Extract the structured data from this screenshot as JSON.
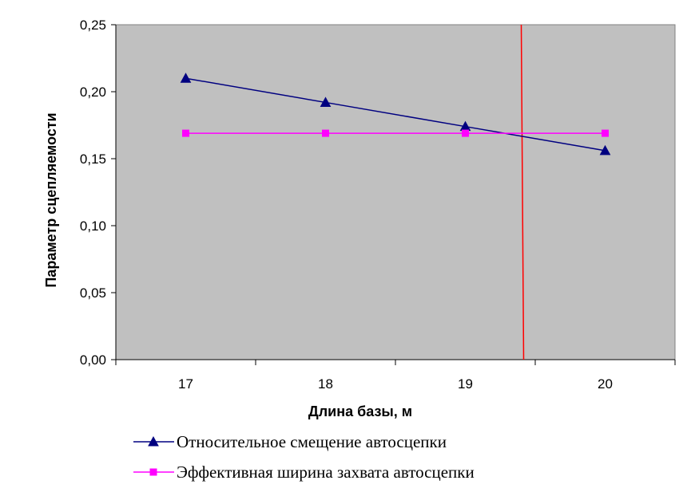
{
  "chart_data": {
    "type": "line",
    "x": [
      "17",
      "18",
      "19",
      "20"
    ],
    "xlabel": "Длина базы, м",
    "ylabel": "Параметр сцепляемости",
    "ylim": [
      0,
      0.25
    ],
    "yticks": [
      "0,00",
      "0,05",
      "0,10",
      "0,15",
      "0,20",
      "0,25"
    ],
    "grid": false,
    "plot_background": "#c0c0c0",
    "legend_position": "bottom",
    "series": [
      {
        "name": "Относительное смещение автосцепки",
        "values": [
          0.21,
          0.192,
          0.174,
          0.156
        ],
        "color": "#000080",
        "marker": "triangle"
      },
      {
        "name": "Эффективная ширина захвата автосцепки",
        "values": [
          0.169,
          0.169,
          0.169,
          0.169
        ],
        "color": "#ff00ff",
        "marker": "square"
      }
    ],
    "reference_line": {
      "orientation": "vertical",
      "x": 19.4,
      "color": "#ff0000"
    }
  }
}
